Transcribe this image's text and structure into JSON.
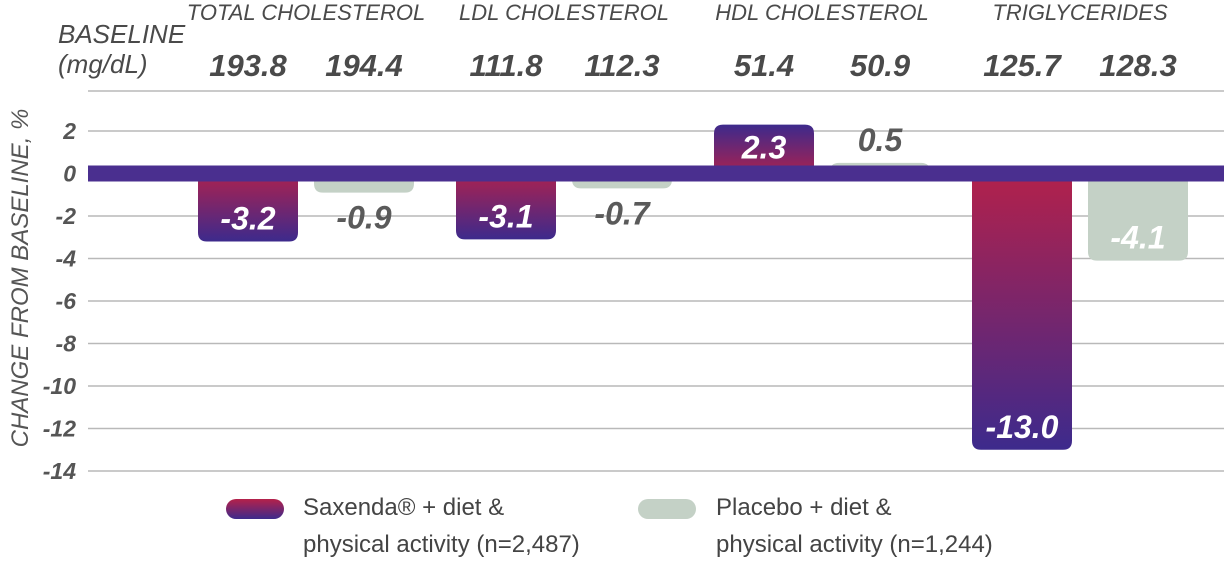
{
  "chart_data": {
    "type": "bar",
    "categories": [
      "TOTAL CHOLESTEROL",
      "LDL CHOLESTEROL",
      "HDL CHOLESTEROL",
      "TRIGLYCERIDES"
    ],
    "series": [
      {
        "name": "Saxenda® + diet & physical activity (n=2,487)",
        "values": [
          -3.2,
          -3.1,
          2.3,
          -13.0
        ],
        "labels": [
          "-3.2",
          "-3.1",
          "2.3",
          "-13.0"
        ],
        "baseline": [
          "193.8",
          "111.8",
          "51.4",
          "125.7"
        ]
      },
      {
        "name": "Placebo + diet & physical activity (n=1,244)",
        "values": [
          -0.9,
          -0.7,
          0.5,
          -4.1
        ],
        "labels": [
          "-0.9",
          "-0.7",
          "0.5",
          "-4.1"
        ],
        "baseline": [
          "194.4",
          "112.3",
          "50.9",
          "128.3"
        ]
      }
    ],
    "baseline_label_line1": "BASELINE",
    "baseline_label_line2": "(mg/dL)",
    "ylabel": "CHANGE FROM BASELINE, %",
    "ylim": [
      -14,
      2
    ],
    "yticks": [
      2,
      0,
      -2,
      -4,
      -6,
      -8,
      -10,
      -12,
      -14
    ],
    "grid": true,
    "legend_position": "bottom",
    "legend": {
      "item1_line1": "Saxenda® + diet &",
      "item1_line2": "physical activity (n=2,487)",
      "item2_line1": "Placebo + diet &",
      "item2_line2": "physical activity (n=1,244)"
    },
    "colors": {
      "saxenda_top": "#b5214a",
      "saxenda_bottom": "#3d2a8c",
      "placebo": "#c4d1c6",
      "zero_line": "#4a2f8f",
      "grid": "#b9b9b9",
      "placebo_label": "#5a5a5a"
    }
  }
}
